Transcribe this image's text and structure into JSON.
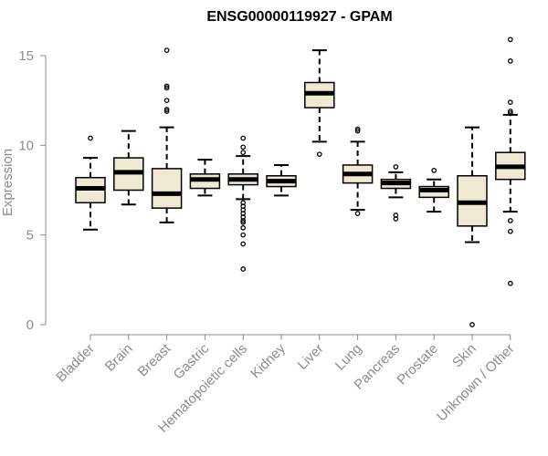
{
  "chart_data": {
    "type": "boxplot",
    "title": "ENSG00000119927 - GPAM",
    "ylabel": "Expression",
    "xlabel": "",
    "ylim": [
      0,
      16
    ],
    "yticks": [
      0,
      5,
      10,
      15
    ],
    "grid": false,
    "colors": {
      "box_fill": "#efe8d2",
      "box_stroke": "#000000",
      "axis": "#8c8c8c"
    },
    "categories": [
      "Bladder",
      "Brain",
      "Breast",
      "Gastric",
      "Hematopoietic cells",
      "Kidney",
      "Liver",
      "Lung",
      "Pancreas",
      "Prostate",
      "Skin",
      "Unknown / Other"
    ],
    "boxes": [
      {
        "name": "Bladder",
        "q1": 6.8,
        "median": 7.6,
        "q3": 8.2,
        "whisker_low": 5.3,
        "whisker_high": 9.3,
        "outliers": [
          10.4
        ]
      },
      {
        "name": "Brain",
        "q1": 7.5,
        "median": 8.5,
        "q3": 9.3,
        "whisker_low": 6.7,
        "whisker_high": 10.8,
        "outliers": []
      },
      {
        "name": "Breast",
        "q1": 6.5,
        "median": 7.3,
        "q3": 8.7,
        "whisker_low": 5.7,
        "whisker_high": 11.0,
        "outliers": [
          15.3,
          13.3,
          13.2,
          12.5,
          12.0,
          11.9
        ]
      },
      {
        "name": "Gastric",
        "q1": 7.6,
        "median": 8.1,
        "q3": 8.4,
        "whisker_low": 7.2,
        "whisker_high": 9.2,
        "outliers": []
      },
      {
        "name": "Hematopoietic cells",
        "q1": 7.8,
        "median": 8.1,
        "q3": 8.4,
        "whisker_low": 7.0,
        "whisker_high": 9.4,
        "outliers": [
          10.4,
          9.9,
          9.6,
          6.8,
          6.6,
          6.4,
          6.2,
          6.0,
          5.8,
          5.7,
          5.4,
          5.0,
          4.5,
          3.1
        ]
      },
      {
        "name": "Kidney",
        "q1": 7.7,
        "median": 8.0,
        "q3": 8.3,
        "whisker_low": 7.2,
        "whisker_high": 8.9,
        "outliers": []
      },
      {
        "name": "Liver",
        "q1": 12.1,
        "median": 12.9,
        "q3": 13.5,
        "whisker_low": 10.2,
        "whisker_high": 15.3,
        "outliers": [
          9.5
        ]
      },
      {
        "name": "Lung",
        "q1": 7.9,
        "median": 8.4,
        "q3": 8.9,
        "whisker_low": 6.4,
        "whisker_high": 10.2,
        "outliers": [
          10.9,
          10.8,
          6.2
        ]
      },
      {
        "name": "Pancreas",
        "q1": 7.6,
        "median": 7.9,
        "q3": 8.1,
        "whisker_low": 7.1,
        "whisker_high": 8.5,
        "outliers": [
          8.8,
          6.1,
          5.9
        ]
      },
      {
        "name": "Prostate",
        "q1": 7.1,
        "median": 7.5,
        "q3": 7.7,
        "whisker_low": 6.3,
        "whisker_high": 8.1,
        "outliers": [
          8.6
        ]
      },
      {
        "name": "Skin",
        "q1": 5.5,
        "median": 6.8,
        "q3": 8.3,
        "whisker_low": 4.6,
        "whisker_high": 11.0,
        "outliers": [
          0.0
        ]
      },
      {
        "name": "Unknown / Other",
        "q1": 8.1,
        "median": 8.8,
        "q3": 9.6,
        "whisker_low": 6.3,
        "whisker_high": 11.7,
        "outliers": [
          15.9,
          14.7,
          12.4,
          11.9,
          11.8,
          5.8,
          5.2,
          2.3
        ]
      }
    ]
  }
}
